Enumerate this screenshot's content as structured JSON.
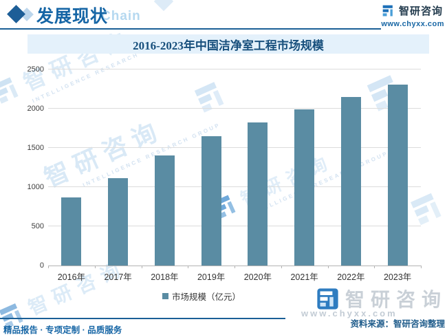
{
  "header": {
    "section_title": "发展现状",
    "section_watermark_en": "Chain",
    "brand": "智研咨询",
    "website": "www.chyxx.com"
  },
  "chart_data": {
    "type": "bar",
    "title": "2016-2023年中国洁净室工程市场规模",
    "categories": [
      "2016年",
      "2017年",
      "2018年",
      "2019年",
      "2020年",
      "2021年",
      "2022年",
      "2023年"
    ],
    "values": [
      870,
      1115,
      1400,
      1650,
      1825,
      1990,
      2145,
      2310
    ],
    "series_name": "市场规模（亿元）",
    "xlabel": "",
    "ylabel": "",
    "ylim": [
      0,
      2500
    ],
    "yticks": [
      0,
      500,
      1000,
      1500,
      2000,
      2500
    ],
    "grid": true,
    "legend_position": "bottom",
    "bar_color": "#5a8ca3"
  },
  "legend": {
    "label": "市场规模（亿元）"
  },
  "footer": {
    "source": "资料来源：智研咨询整理",
    "services": "精品报告 · 专项定制 · 品质服务",
    "brand": "智研咨询",
    "website": "www.chyxx.com"
  },
  "watermark": {
    "brand_cn": "智研咨询",
    "brand_en": "INTELLIGENCE RESEARCH GROUP"
  },
  "colors": {
    "accent_blue": "#1565a5",
    "bar": "#5a8ca3",
    "title_band_bg": "#e4f1fb",
    "title_text": "#174f7c",
    "grid": "#dcdcdc"
  }
}
